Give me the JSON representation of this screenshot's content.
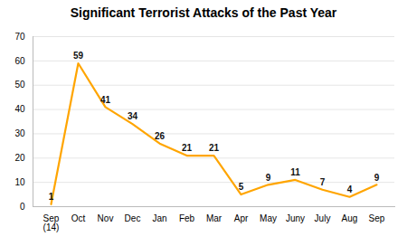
{
  "chart_data": {
    "type": "line",
    "title": "Significant Terrorist Attacks of the Past Year",
    "categories": [
      "Sep\n(14)",
      "Oct",
      "Nov",
      "Dec",
      "Jan",
      "Feb",
      "Mar",
      "Apr",
      "May",
      "Juny",
      "July",
      "Aug",
      "Sep"
    ],
    "values": [
      1,
      59,
      41,
      34,
      26,
      21,
      21,
      5,
      9,
      11,
      7,
      4,
      9
    ],
    "color": "#FFA500",
    "ylim": [
      0,
      70
    ],
    "yticks": [
      0,
      10,
      20,
      30,
      40,
      50,
      60,
      70
    ],
    "grid": true,
    "data_labels": true
  }
}
